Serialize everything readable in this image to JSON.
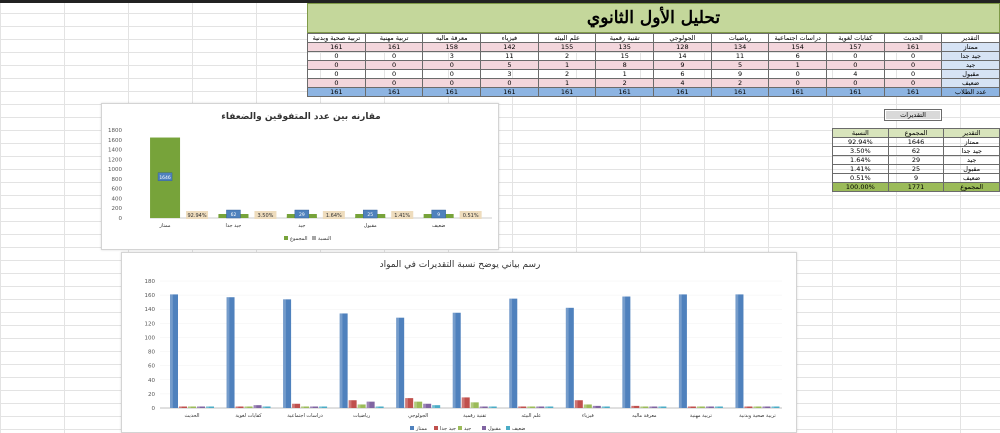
{
  "banner": {
    "title": "تحليل الأول الثانوي"
  },
  "main_table": {
    "headers": [
      "التقدير",
      "الحديث",
      "كفايات لغوية",
      "دراسات اجتماعية",
      "رياضيات",
      "الجولوجي",
      "تقنية رقمية",
      "علم البيئه",
      "فيزياء",
      "معرفة ماليه",
      "تربية مهنية",
      "تربية صحية وبدنية"
    ],
    "rows": [
      {
        "label": "ممتاز",
        "values": [
          "161",
          "157",
          "154",
          "134",
          "128",
          "135",
          "155",
          "142",
          "158",
          "161",
          "161"
        ]
      },
      {
        "label": "جيد جدا",
        "values": [
          "0",
          "0",
          "6",
          "11",
          "14",
          "15",
          "2",
          "11",
          "3",
          "0",
          "0"
        ]
      },
      {
        "label": "جيد",
        "values": [
          "0",
          "0",
          "1",
          "5",
          "9",
          "8",
          "1",
          "5",
          "0",
          "0",
          "0"
        ]
      },
      {
        "label": "مقبول",
        "values": [
          "0",
          "4",
          "0",
          "9",
          "6",
          "1",
          "2",
          "3",
          "0",
          "0",
          "0"
        ]
      },
      {
        "label": "ضعيف",
        "values": [
          "0",
          "0",
          "0",
          "2",
          "4",
          "2",
          "1",
          "0",
          "0",
          "0",
          "0"
        ]
      },
      {
        "label": "عدد الطلاب",
        "values": [
          "161",
          "161",
          "161",
          "161",
          "161",
          "161",
          "161",
          "161",
          "161",
          "161",
          "161"
        ]
      }
    ]
  },
  "grades_button": {
    "label": "التقديرات"
  },
  "summary_table": {
    "headers": [
      "التقدير",
      "المجموع",
      "النسبة"
    ],
    "rows": [
      {
        "grade": "ممتاز",
        "total": "1646",
        "percent": "92.94%"
      },
      {
        "grade": "جيد جدا",
        "total": "62",
        "percent": "3.50%"
      },
      {
        "grade": "جيد",
        "total": "29",
        "percent": "1.64%"
      },
      {
        "grade": "مقبول",
        "total": "25",
        "percent": "1.41%"
      },
      {
        "grade": "ضعيف",
        "total": "9",
        "percent": "0.51%"
      }
    ],
    "total_row": {
      "grade": "المجموع",
      "total": "1771",
      "percent": "100.00%"
    }
  },
  "colors": {
    "excellent": "#4f81bd",
    "very_good": "#c0504d",
    "good": "#9bbb59",
    "acceptable": "#8064a2",
    "weak": "#4bacc6",
    "green_bar": "#77a33a",
    "label_bg": "#eedcbd"
  },
  "chart_data": [
    {
      "type": "bar",
      "title": "مقارنه بين عدد المتفوقين والضعفاء",
      "categories": [
        "ممتاز",
        "جيد جدا",
        "جيد",
        "مقبول",
        "ضعيف"
      ],
      "series": [
        {
          "name": "المجموع",
          "values": [
            1646,
            62,
            29,
            25,
            9
          ]
        },
        {
          "name": "النسبة",
          "values": [
            "92.94%",
            "3.50%",
            "1.64%",
            "1.41%",
            "0.51%"
          ]
        }
      ],
      "data_labels": [
        "1646",
        "92.94%",
        "3.50%",
        "1.64%",
        "1.41%",
        "0.51%"
      ],
      "ylim": [
        0,
        1800
      ],
      "yticks": [
        "0",
        "200",
        "400",
        "600",
        "800",
        "1000",
        "1200",
        "1400",
        "1600",
        "1800"
      ],
      "legend": "bottom"
    },
    {
      "type": "bar",
      "title": "رسم بياني يوضح نسبة التقديرات في المواد",
      "categories": [
        "الحديث",
        "كفايات لغوية",
        "دراسات اجتماعية",
        "رياضيات",
        "الجولوجي",
        "تقنية رقمية",
        "علم البيئه",
        "فيزياء",
        "معرفة ماليه",
        "تربية مهنية",
        "تربية صحية وبدنية"
      ],
      "series": [
        {
          "name": "ممتاز",
          "values": [
            161,
            157,
            154,
            134,
            128,
            135,
            155,
            142,
            158,
            161,
            161
          ]
        },
        {
          "name": "جيد جدا",
          "values": [
            0,
            0,
            6,
            11,
            14,
            15,
            2,
            11,
            3,
            0,
            0
          ]
        },
        {
          "name": "جيد",
          "values": [
            0,
            0,
            1,
            5,
            9,
            8,
            1,
            5,
            0,
            0,
            0
          ]
        },
        {
          "name": "مقبول",
          "values": [
            0,
            4,
            0,
            9,
            6,
            1,
            2,
            3,
            0,
            0,
            0
          ]
        },
        {
          "name": "ضعيف",
          "values": [
            0,
            0,
            0,
            2,
            4,
            2,
            1,
            0,
            0,
            0,
            0
          ]
        }
      ],
      "ylim": [
        0,
        180
      ],
      "yticks": [
        "0",
        "20",
        "40",
        "60",
        "80",
        "100",
        "120",
        "140",
        "160",
        "180"
      ],
      "legend": "bottom"
    }
  ]
}
